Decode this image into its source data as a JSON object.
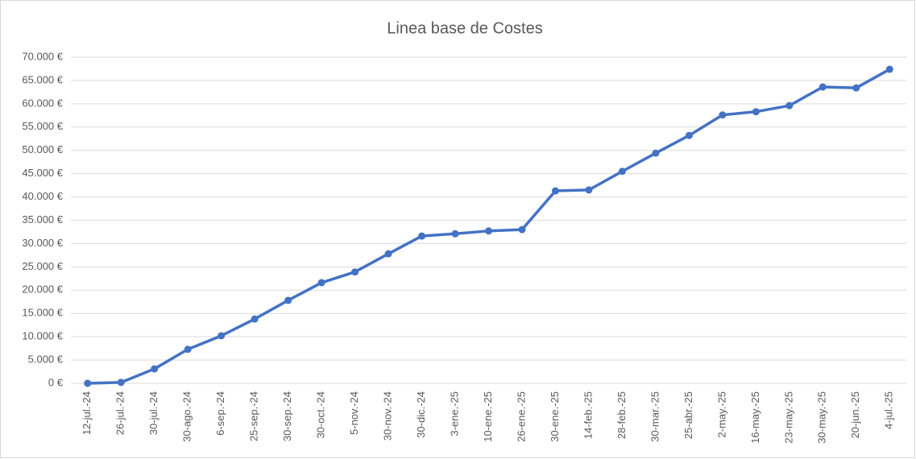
{
  "chart_data": {
    "type": "line",
    "title": "Linea base de Costes",
    "categories": [
      "12-jul.-24",
      "26-jul.-24",
      "30-jul.-24",
      "30-ago.-24",
      "6-sep.-24",
      "25-sep.-24",
      "30-sep.-24",
      "30-oct.-24",
      "5-nov.-24",
      "30-nov.-24",
      "30-dic.-24",
      "3-ene.-25",
      "10-ene.-25",
      "26-ene.-25",
      "30-ene.-25",
      "14-feb.-25",
      "28-feb.-25",
      "30-mar.-25",
      "25-abr.-25",
      "2-may.-25",
      "16-may.-25",
      "23-may.-25",
      "30-may.-25",
      "20-jun.-25",
      "4-jul.-25"
    ],
    "series": [
      {
        "color": "#4472c4",
        "values": [
          0,
          200,
          3100,
          7300,
          10200,
          13800,
          17800,
          21600,
          23900,
          27800,
          31600,
          32100,
          32700,
          33000,
          41300,
          41500,
          45500,
          49400,
          53200,
          57600,
          58300,
          59600,
          63600,
          63400,
          67400
        ]
      }
    ],
    "ylim": [
      0,
      70000
    ],
    "yticks": [
      {
        "value": 0,
        "label": "0 €"
      },
      {
        "value": 5000,
        "label": "5.000 €"
      },
      {
        "value": 10000,
        "label": "10.000 €"
      },
      {
        "value": 15000,
        "label": "15.000 €"
      },
      {
        "value": 20000,
        "label": "20.000 €"
      },
      {
        "value": 25000,
        "label": "25.000 €"
      },
      {
        "value": 30000,
        "label": "30.000 €"
      },
      {
        "value": 35000,
        "label": "35.000 €"
      },
      {
        "value": 40000,
        "label": "40.000 €"
      },
      {
        "value": 45000,
        "label": "45.000 €"
      },
      {
        "value": 50000,
        "label": "50.000 €"
      },
      {
        "value": 55000,
        "label": "55.000 €"
      },
      {
        "value": 60000,
        "label": "60.000 €"
      },
      {
        "value": 65000,
        "label": "65.000 €"
      },
      {
        "value": 70000,
        "label": "70.000 €"
      }
    ],
    "grid": true
  }
}
